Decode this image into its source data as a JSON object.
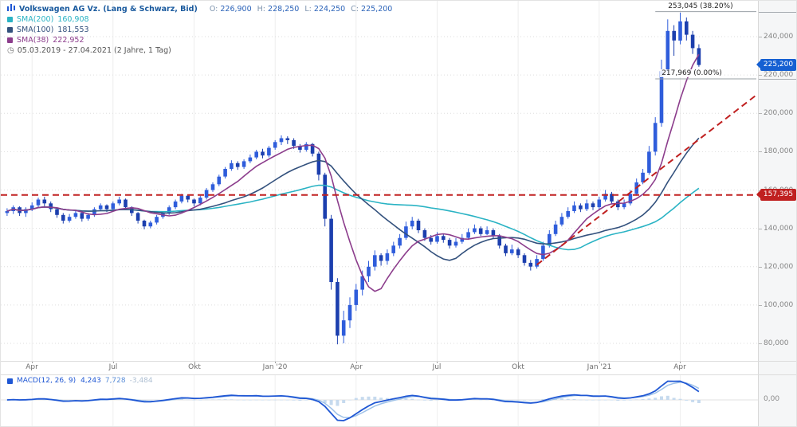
{
  "header": {
    "title": "Volkswagen AG Vz. (Lang & Schwarz, Bid)",
    "ohlc": {
      "o_label": "O:",
      "o": "226,900",
      "h_label": "H:",
      "h": "228,250",
      "l_label": "L:",
      "l": "224,250",
      "c_label": "C:",
      "c": "225,200"
    },
    "indicators": [
      {
        "label": "SMA(200)",
        "value": "160,908",
        "color": "#2ab3c4"
      },
      {
        "label": "SMA(100)",
        "value": "181,553",
        "color": "#33517d"
      },
      {
        "label": "SMA(38)",
        "value": "222,952",
        "color": "#8c3d8c"
      }
    ],
    "clock_icon": "◷",
    "date_range": "05.03.2019 - 27.04.2021  (2 Jahre, 1 Tag)"
  },
  "price_axis": {
    "current_price": "225,200",
    "alert_price": "157,395"
  },
  "macd_panel": {
    "label": "MACD(12, 26, 9)",
    "macd_value": "4,243",
    "signal_value": "7,728",
    "hist_value": "-3,484",
    "zero_label": "0,00"
  },
  "chart_data": {
    "type": "candlestick",
    "title": "Volkswagen AG Vz. (Lang & Schwarz, Bid)",
    "period": "05.03.2019 - 27.04.2021 (2 Jahre, 1 Tag)",
    "candle_color": "#2b51d6",
    "y_ticks": [
      {
        "text": "240,000",
        "value": 240
      },
      {
        "text": "220,000",
        "value": 220
      },
      {
        "text": "200,000",
        "value": 200
      },
      {
        "text": "180,000",
        "value": 180
      },
      {
        "text": "160,000",
        "value": 160
      },
      {
        "text": "140,000",
        "value": 140
      },
      {
        "text": "120,000",
        "value": 120
      },
      {
        "text": "100,000",
        "value": 100
      },
      {
        "text": "80,000",
        "value": 80
      }
    ],
    "x_ticks": [
      {
        "text": "Apr",
        "index": 4
      },
      {
        "text": "Jul",
        "index": 17
      },
      {
        "text": "Okt",
        "index": 30
      },
      {
        "text": "Jan '20",
        "index": 43
      },
      {
        "text": "Apr",
        "index": 56
      },
      {
        "text": "Jul",
        "index": 69
      },
      {
        "text": "Okt",
        "index": 82
      },
      {
        "text": "Jan '21",
        "index": 95
      },
      {
        "text": "Apr",
        "index": 108
      }
    ],
    "candles": [
      [
        148,
        150.5,
        146.5,
        149
      ],
      [
        149,
        152,
        147.5,
        151
      ],
      [
        151,
        151.5,
        146.5,
        148
      ],
      [
        148,
        151,
        146,
        150
      ],
      [
        150,
        153.5,
        149,
        152
      ],
      [
        152,
        156,
        151,
        155
      ],
      [
        155,
        156.5,
        151.5,
        153
      ],
      [
        153,
        154,
        148.5,
        150
      ],
      [
        150,
        150.5,
        145.5,
        147
      ],
      [
        147,
        148,
        142.5,
        144
      ],
      [
        144,
        147.5,
        143,
        146
      ],
      [
        146,
        149.5,
        145,
        148
      ],
      [
        148,
        148.5,
        143.5,
        145
      ],
      [
        145,
        148,
        144,
        147
      ],
      [
        147,
        151,
        146,
        150
      ],
      [
        150,
        153,
        149,
        152
      ],
      [
        152,
        152.5,
        148.5,
        150
      ],
      [
        150,
        154,
        149.5,
        153
      ],
      [
        153,
        156.5,
        152,
        155
      ],
      [
        155,
        155.5,
        150,
        151
      ],
      [
        151,
        151.5,
        146.5,
        148
      ],
      [
        148,
        148.5,
        142.5,
        144
      ],
      [
        144,
        144.5,
        139.5,
        141
      ],
      [
        141,
        144,
        140,
        143
      ],
      [
        143,
        147,
        142,
        146
      ],
      [
        146,
        149,
        145,
        148
      ],
      [
        148,
        152,
        147,
        151
      ],
      [
        151,
        155,
        150,
        154
      ],
      [
        154,
        158,
        153,
        157
      ],
      [
        157,
        157.5,
        153.5,
        155
      ],
      [
        155,
        155.5,
        151.5,
        153
      ],
      [
        153,
        157,
        152,
        156
      ],
      [
        156,
        161,
        155,
        160
      ],
      [
        160,
        164,
        159,
        163
      ],
      [
        163,
        168,
        162,
        167
      ],
      [
        167,
        172,
        166,
        171
      ],
      [
        171,
        175.5,
        170,
        174
      ],
      [
        174,
        175,
        170.5,
        172
      ],
      [
        172,
        176,
        171,
        175
      ],
      [
        175,
        178.5,
        174,
        177
      ],
      [
        177,
        181,
        176,
        180
      ],
      [
        180,
        181.5,
        176.5,
        178
      ],
      [
        178,
        183,
        177,
        182
      ],
      [
        182,
        186,
        181,
        185
      ],
      [
        185,
        188.5,
        183.5,
        187
      ],
      [
        187,
        188,
        184,
        186
      ],
      [
        186,
        187,
        181.5,
        183
      ],
      [
        183,
        184,
        179.5,
        181
      ],
      [
        181,
        185,
        180,
        184
      ],
      [
        184,
        184.5,
        177.5,
        179
      ],
      [
        179,
        180,
        165,
        168
      ],
      [
        168,
        169,
        141,
        145
      ],
      [
        145,
        147,
        108,
        112
      ],
      [
        112,
        114,
        79.5,
        84
      ],
      [
        84,
        97,
        80,
        92
      ],
      [
        92,
        104,
        88,
        100
      ],
      [
        100,
        111,
        97,
        108
      ],
      [
        108,
        118,
        105,
        115
      ],
      [
        115,
        123,
        112,
        120
      ],
      [
        120,
        128.5,
        118,
        126
      ],
      [
        126,
        127,
        120.5,
        123
      ],
      [
        123,
        129,
        121,
        127
      ],
      [
        127,
        133,
        125.5,
        131
      ],
      [
        131,
        137,
        129.5,
        135
      ],
      [
        135,
        143.5,
        134,
        141
      ],
      [
        141,
        146,
        139.5,
        144
      ],
      [
        144,
        145,
        137.5,
        139
      ],
      [
        139,
        140,
        133.5,
        135
      ],
      [
        135,
        136.5,
        131.5,
        133
      ],
      [
        133,
        138,
        132,
        136
      ],
      [
        136,
        137,
        132.5,
        134
      ],
      [
        134,
        135,
        129.5,
        131
      ],
      [
        131,
        135,
        130,
        133
      ],
      [
        133,
        137,
        132,
        135
      ],
      [
        135,
        140,
        134,
        138
      ],
      [
        138,
        142,
        137,
        140
      ],
      [
        140,
        141,
        136,
        137
      ],
      [
        137,
        141,
        136.5,
        139
      ],
      [
        139,
        140,
        134.5,
        136
      ],
      [
        136,
        137,
        129.5,
        131
      ],
      [
        131,
        132,
        125.5,
        127
      ],
      [
        127,
        131.5,
        126,
        129
      ],
      [
        129,
        130,
        124.5,
        126
      ],
      [
        126,
        127,
        120.5,
        122
      ],
      [
        122,
        123.5,
        118,
        120
      ],
      [
        120,
        126,
        119,
        124
      ],
      [
        124,
        133,
        123,
        131
      ],
      [
        131,
        139,
        130,
        137
      ],
      [
        137,
        144,
        136,
        142
      ],
      [
        142,
        148,
        141,
        146
      ],
      [
        146,
        151,
        145,
        149
      ],
      [
        149,
        154,
        148,
        152
      ],
      [
        152,
        153,
        148.5,
        150
      ],
      [
        150,
        155,
        149,
        153
      ],
      [
        153,
        154,
        149.5,
        151
      ],
      [
        151,
        156.5,
        150,
        155
      ],
      [
        155,
        160,
        154,
        158
      ],
      [
        158,
        159,
        152.5,
        154
      ],
      [
        154,
        155,
        149.5,
        151
      ],
      [
        151,
        155,
        150,
        153
      ],
      [
        153,
        160,
        152,
        158
      ],
      [
        158,
        166,
        157,
        164
      ],
      [
        164,
        171,
        163,
        169
      ],
      [
        169,
        183,
        168,
        180
      ],
      [
        180,
        198,
        178,
        195
      ],
      [
        195,
        228,
        193,
        222
      ],
      [
        222,
        249,
        220,
        243
      ],
      [
        243,
        246,
        230,
        238
      ],
      [
        238,
        252.5,
        236,
        248
      ],
      [
        248,
        250,
        238,
        241
      ],
      [
        241,
        243,
        231,
        234
      ],
      [
        234,
        236,
        224.3,
        225.2
      ]
    ],
    "sma_overlays": [
      {
        "name": "SMA(200)",
        "color": "#2ab3c4",
        "window": 40,
        "current": "160,908"
      },
      {
        "name": "SMA(100)",
        "color": "#33517d",
        "window": 20,
        "current": "181,553"
      },
      {
        "name": "SMA(38)",
        "color": "#8c3d8c",
        "window": 8,
        "current": "222,952"
      }
    ],
    "horizontal_line": {
      "value": 157.395,
      "label": "157,395",
      "color": "#c02020",
      "style": "dashed"
    },
    "trend_line": {
      "from_index": 85,
      "from_value": 121,
      "to_index": 120,
      "to_value": 209,
      "color": "#c02020",
      "style": "dashed"
    },
    "fibonacci": {
      "start_index": 104,
      "levels": [
        {
          "label": "253,045 (38.20%)",
          "value": 253.045
        },
        {
          "label": "217,969 (0.00%)",
          "value": 217.969
        }
      ]
    },
    "last_price": {
      "value": 225.2,
      "label": "225,200"
    },
    "macd": {
      "params": [
        12,
        26,
        9
      ],
      "macd": 4.243,
      "signal": 7.728,
      "histogram": -3.484,
      "zero_label": "0,00",
      "line_color": "#1f57d4",
      "signal_color": "#9ec1e8",
      "hist_color": "#c6daee"
    }
  }
}
